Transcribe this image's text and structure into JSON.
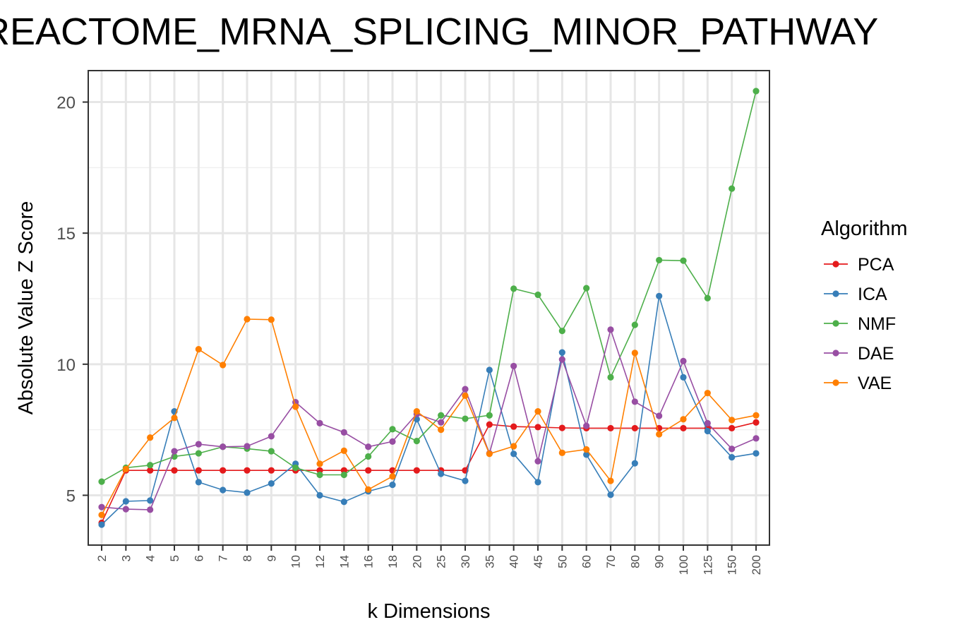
{
  "chart_data": {
    "type": "line",
    "title": "REACTOME_MRNA_SPLICING_MINOR_PATHWAY",
    "xlabel": "k Dimensions",
    "ylabel": "Absolute Value Z Score",
    "categories": [
      "2",
      "3",
      "4",
      "5",
      "6",
      "7",
      "8",
      "9",
      "10",
      "12",
      "14",
      "16",
      "18",
      "20",
      "25",
      "30",
      "35",
      "40",
      "45",
      "50",
      "60",
      "70",
      "80",
      "90",
      "100",
      "125",
      "150",
      "200"
    ],
    "y_ticks": [
      5,
      10,
      15,
      20
    ],
    "ylim": [
      3.1,
      21.2
    ],
    "grid": true,
    "legend": {
      "title": "Algorithm",
      "position": "right"
    },
    "series": [
      {
        "name": "PCA",
        "color": "#e41a1c",
        "values": [
          3.95,
          5.95,
          5.95,
          5.95,
          5.95,
          5.95,
          5.95,
          5.95,
          5.95,
          5.95,
          5.95,
          5.95,
          5.95,
          5.95,
          5.95,
          5.95,
          7.7,
          7.62,
          7.6,
          7.57,
          7.56,
          7.56,
          7.56,
          7.56,
          7.56,
          7.56,
          7.56,
          7.78
        ]
      },
      {
        "name": "ICA",
        "color": "#377eb8",
        "values": [
          3.88,
          4.77,
          4.8,
          8.2,
          5.5,
          5.2,
          5.1,
          5.45,
          6.2,
          5.0,
          4.75,
          5.15,
          5.4,
          7.9,
          5.82,
          5.55,
          9.78,
          6.58,
          5.5,
          10.45,
          6.55,
          5.02,
          6.22,
          12.6,
          9.5,
          7.45,
          6.45,
          6.6
        ]
      },
      {
        "name": "NMF",
        "color": "#4daf4a",
        "values": [
          5.52,
          6.05,
          6.15,
          6.48,
          6.6,
          6.85,
          6.78,
          6.68,
          6.05,
          5.78,
          5.78,
          6.48,
          7.52,
          7.07,
          8.05,
          7.92,
          8.05,
          12.88,
          12.65,
          11.27,
          12.9,
          9.5,
          11.5,
          13.97,
          13.95,
          12.52,
          16.7,
          20.42
        ]
      },
      {
        "name": "DAE",
        "color": "#984ea3",
        "values": [
          4.55,
          4.47,
          4.45,
          6.68,
          6.95,
          6.85,
          6.87,
          7.25,
          8.55,
          7.75,
          7.4,
          6.85,
          7.05,
          8.1,
          7.78,
          9.05,
          6.6,
          9.93,
          6.3,
          10.18,
          7.65,
          11.32,
          8.57,
          8.03,
          10.12,
          7.75,
          6.77,
          7.17
        ]
      },
      {
        "name": "VAE",
        "color": "#ff7f00",
        "values": [
          4.25,
          6.0,
          7.2,
          7.95,
          10.57,
          9.97,
          11.72,
          11.7,
          8.38,
          6.2,
          6.7,
          5.22,
          5.72,
          8.2,
          7.5,
          8.8,
          6.58,
          6.87,
          8.2,
          6.62,
          6.75,
          5.55,
          10.43,
          7.33,
          7.9,
          8.9,
          7.87,
          8.05
        ]
      }
    ]
  }
}
